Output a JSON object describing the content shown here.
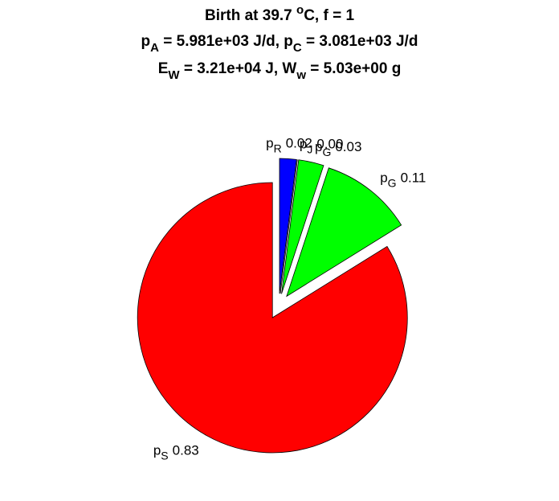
{
  "chart_data": {
    "type": "pie",
    "title": [
      [
        {
          "t": "Birth at 39.7 "
        },
        {
          "sup": "o"
        },
        {
          "t": "C, f = 1"
        }
      ],
      [
        {
          "t": "p"
        },
        {
          "sub": "A"
        },
        {
          "t": " = 5.981e+03 J/d, p"
        },
        {
          "sub": "C"
        },
        {
          "t": " = 3.081e+03 J/d"
        }
      ],
      [
        {
          "t": "E"
        },
        {
          "sub": "W"
        },
        {
          "t": " = 3.21e+04 J, W"
        },
        {
          "sub": "w"
        },
        {
          "t": " = 5.03e+00 g"
        }
      ]
    ],
    "labels": [
      {
        "t": "p",
        "sub": "R"
      },
      {
        "t": "p",
        "sub": "J"
      },
      {
        "t": "p",
        "sub": "G"
      },
      {
        "t": "p",
        "sub": "G"
      },
      {
        "t": "p",
        "sub": "S"
      }
    ],
    "values": [
      0.02,
      0.0,
      0.03,
      0.11,
      0.83
    ],
    "value_labels": [
      "0.02",
      "0.00",
      "0.03",
      "0.11",
      "0.83"
    ],
    "colors": [
      "#0000ff",
      "#ff0000",
      "#00ff00",
      "#00ff00",
      "#ff0000"
    ],
    "explode": [
      1,
      1,
      1,
      1,
      1
    ]
  }
}
